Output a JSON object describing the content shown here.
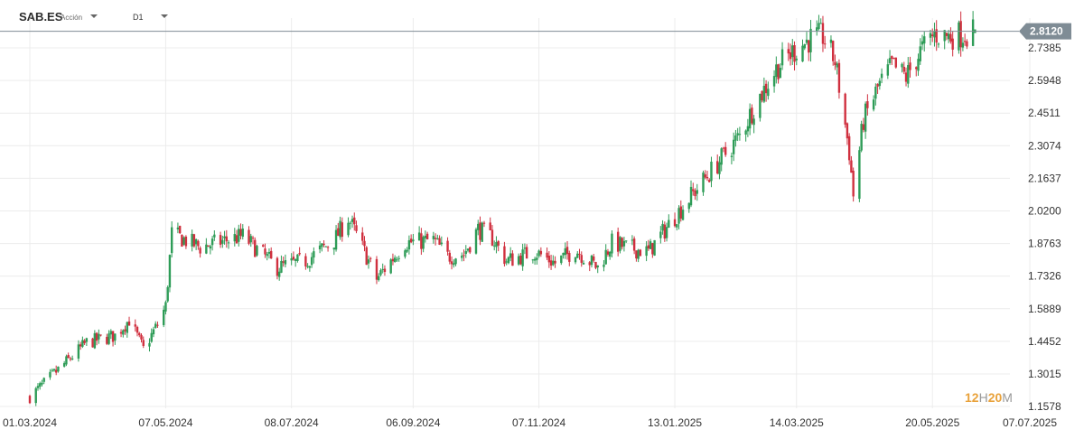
{
  "header": {
    "symbol": "SAB.ES",
    "symbol_type": "Acción",
    "timeframe": "D1"
  },
  "watermark": {
    "n1": "12",
    "l1": "H",
    "n2": "20",
    "l2": "M"
  },
  "colors": {
    "up": "#2e9c57",
    "down": "#d0303f",
    "grid": "#ececec",
    "last_price_bg": "#7f8c95",
    "last_price_line": "#7f8c95"
  },
  "chart_data": {
    "type": "candlestick",
    "last_price": "2.8120",
    "y_ticks": [
      "2.7385",
      "2.5948",
      "2.4511",
      "2.3074",
      "2.1637",
      "2.0200",
      "1.8763",
      "1.7326",
      "1.5889",
      "1.4452",
      "1.3015",
      "1.1578"
    ],
    "ylim": [
      1.15,
      2.87
    ],
    "x_ticks": [
      "01.03.2024",
      "07.05.2024",
      "08.07.2024",
      "06.09.2024",
      "07.11.2024",
      "13.01.2025",
      "14.03.2025",
      "20.05.2025",
      "07.07.2025"
    ],
    "series": [
      {
        "date": "2024-03-01",
        "close": 1.2
      },
      {
        "date": "2024-03-15",
        "close": 1.32
      },
      {
        "date": "2024-03-29",
        "close": 1.44
      },
      {
        "date": "2024-04-12",
        "close": 1.47
      },
      {
        "date": "2024-04-19",
        "close": 1.54
      },
      {
        "date": "2024-04-26",
        "close": 1.41
      },
      {
        "date": "2024-05-03",
        "close": 1.52
      },
      {
        "date": "2024-05-07",
        "close": 1.6
      },
      {
        "date": "2024-05-10",
        "close": 1.92
      },
      {
        "date": "2024-05-24",
        "close": 1.86
      },
      {
        "date": "2024-06-14",
        "close": 1.91
      },
      {
        "date": "2024-06-21",
        "close": 1.85
      },
      {
        "date": "2024-07-01",
        "close": 1.77
      },
      {
        "date": "2024-07-15",
        "close": 1.8
      },
      {
        "date": "2024-07-29",
        "close": 1.89
      },
      {
        "date": "2024-08-05",
        "close": 1.99
      },
      {
        "date": "2024-08-14",
        "close": 1.82
      },
      {
        "date": "2024-08-19",
        "close": 1.72
      },
      {
        "date": "2024-09-02",
        "close": 1.88
      },
      {
        "date": "2024-09-16",
        "close": 1.89
      },
      {
        "date": "2024-09-23",
        "close": 1.82
      },
      {
        "date": "2024-10-01",
        "close": 1.83
      },
      {
        "date": "2024-10-08",
        "close": 1.94
      },
      {
        "date": "2024-10-15",
        "close": 1.9
      },
      {
        "date": "2024-10-22",
        "close": 1.8
      },
      {
        "date": "2024-11-05",
        "close": 1.84
      },
      {
        "date": "2024-11-15",
        "close": 1.79
      },
      {
        "date": "2024-11-25",
        "close": 1.85
      },
      {
        "date": "2024-12-06",
        "close": 1.77
      },
      {
        "date": "2024-12-13",
        "close": 1.88
      },
      {
        "date": "2024-12-20",
        "close": 1.86
      },
      {
        "date": "2024-12-31",
        "close": 1.84
      },
      {
        "date": "2025-01-10",
        "close": 1.96
      },
      {
        "date": "2025-01-24",
        "close": 2.12
      },
      {
        "date": "2025-02-05",
        "close": 2.25
      },
      {
        "date": "2025-02-14",
        "close": 2.35
      },
      {
        "date": "2025-02-21",
        "close": 2.48
      },
      {
        "date": "2025-03-05",
        "close": 2.66
      },
      {
        "date": "2025-03-12",
        "close": 2.72
      },
      {
        "date": "2025-03-21",
        "close": 2.78
      },
      {
        "date": "2025-03-27",
        "close": 2.79
      },
      {
        "date": "2025-04-02",
        "close": 2.68
      },
      {
        "date": "2025-04-07",
        "close": 2.4
      },
      {
        "date": "2025-04-09",
        "close": 2.28
      },
      {
        "date": "2025-04-11",
        "close": 2.09
      },
      {
        "date": "2025-04-16",
        "close": 2.42
      },
      {
        "date": "2025-04-23",
        "close": 2.56
      },
      {
        "date": "2025-04-30",
        "close": 2.66
      },
      {
        "date": "2025-05-07",
        "close": 2.61
      },
      {
        "date": "2025-05-14",
        "close": 2.72
      },
      {
        "date": "2025-05-21",
        "close": 2.8
      },
      {
        "date": "2025-05-28",
        "close": 2.79
      },
      {
        "date": "2025-06-04",
        "close": 2.8
      },
      {
        "date": "2025-06-10",
        "close": 2.812
      }
    ]
  }
}
